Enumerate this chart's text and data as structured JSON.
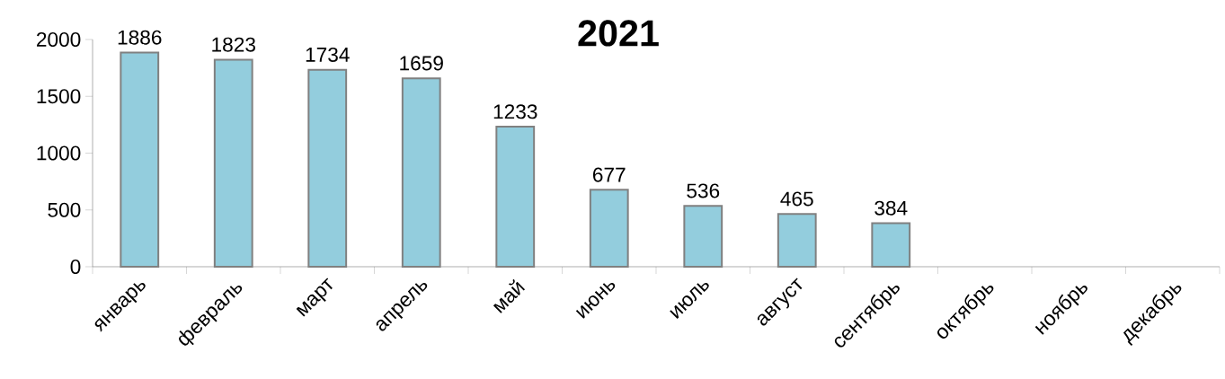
{
  "chart_data": {
    "type": "bar",
    "title": "2021",
    "categories": [
      "январь",
      "февраль",
      "март",
      "апрель",
      "май",
      "июнь",
      "июль",
      "август",
      "сентябрь",
      "октябрь",
      "ноябрь",
      "декабрь"
    ],
    "values": [
      1886,
      1823,
      1734,
      1659,
      1233,
      677,
      536,
      465,
      384,
      null,
      null,
      null
    ],
    "color": "#93cddd",
    "ylim": [
      0,
      2000
    ],
    "yticks": [
      0,
      500,
      1000,
      1500,
      2000
    ],
    "data_labels": true,
    "grid": false
  }
}
